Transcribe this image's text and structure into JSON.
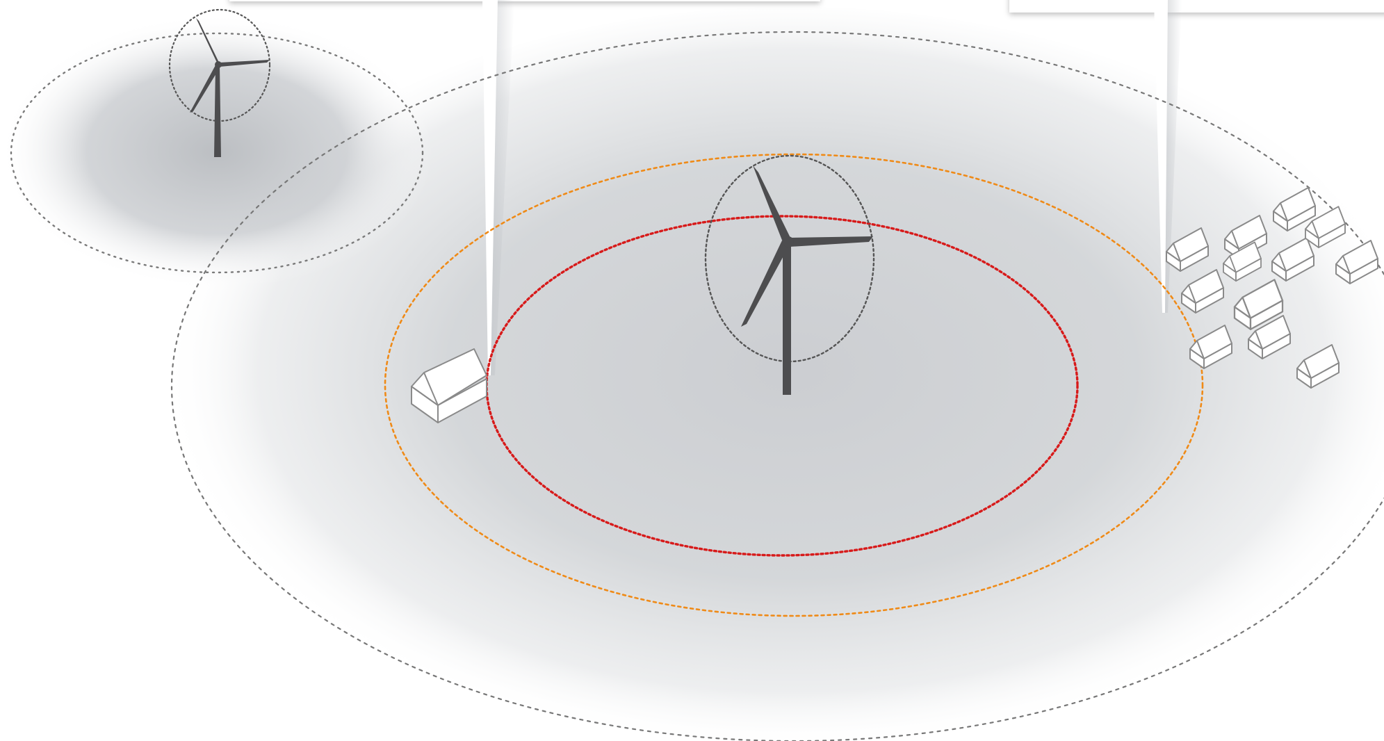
{
  "diagram": {
    "colors": {
      "background": "#ffffff",
      "shading": "#b9bcc1",
      "outer-zone-ring": "#777777",
      "orange-ring": "#ef8a17",
      "red-ring": "#d71a1a",
      "rotor-ring": "#555555",
      "turbine": "#4d4d4f",
      "house-fill": "#ffffff",
      "house-stroke": "#8a8a8a",
      "callout-panel": "#ffffff"
    },
    "elements": {
      "turbines": [
        "main-wind-turbine",
        "distant-wind-turbine"
      ],
      "rings": [
        "outer-zone-ring",
        "orange-setback-ring",
        "red-setback-ring",
        "rotor-sweep-ring"
      ],
      "buildings": [
        "single-house",
        "village-cluster"
      ],
      "callouts": [
        "left-callout-pointer",
        "right-callout-pointer"
      ]
    },
    "village_house_count": 12,
    "labels": []
  }
}
